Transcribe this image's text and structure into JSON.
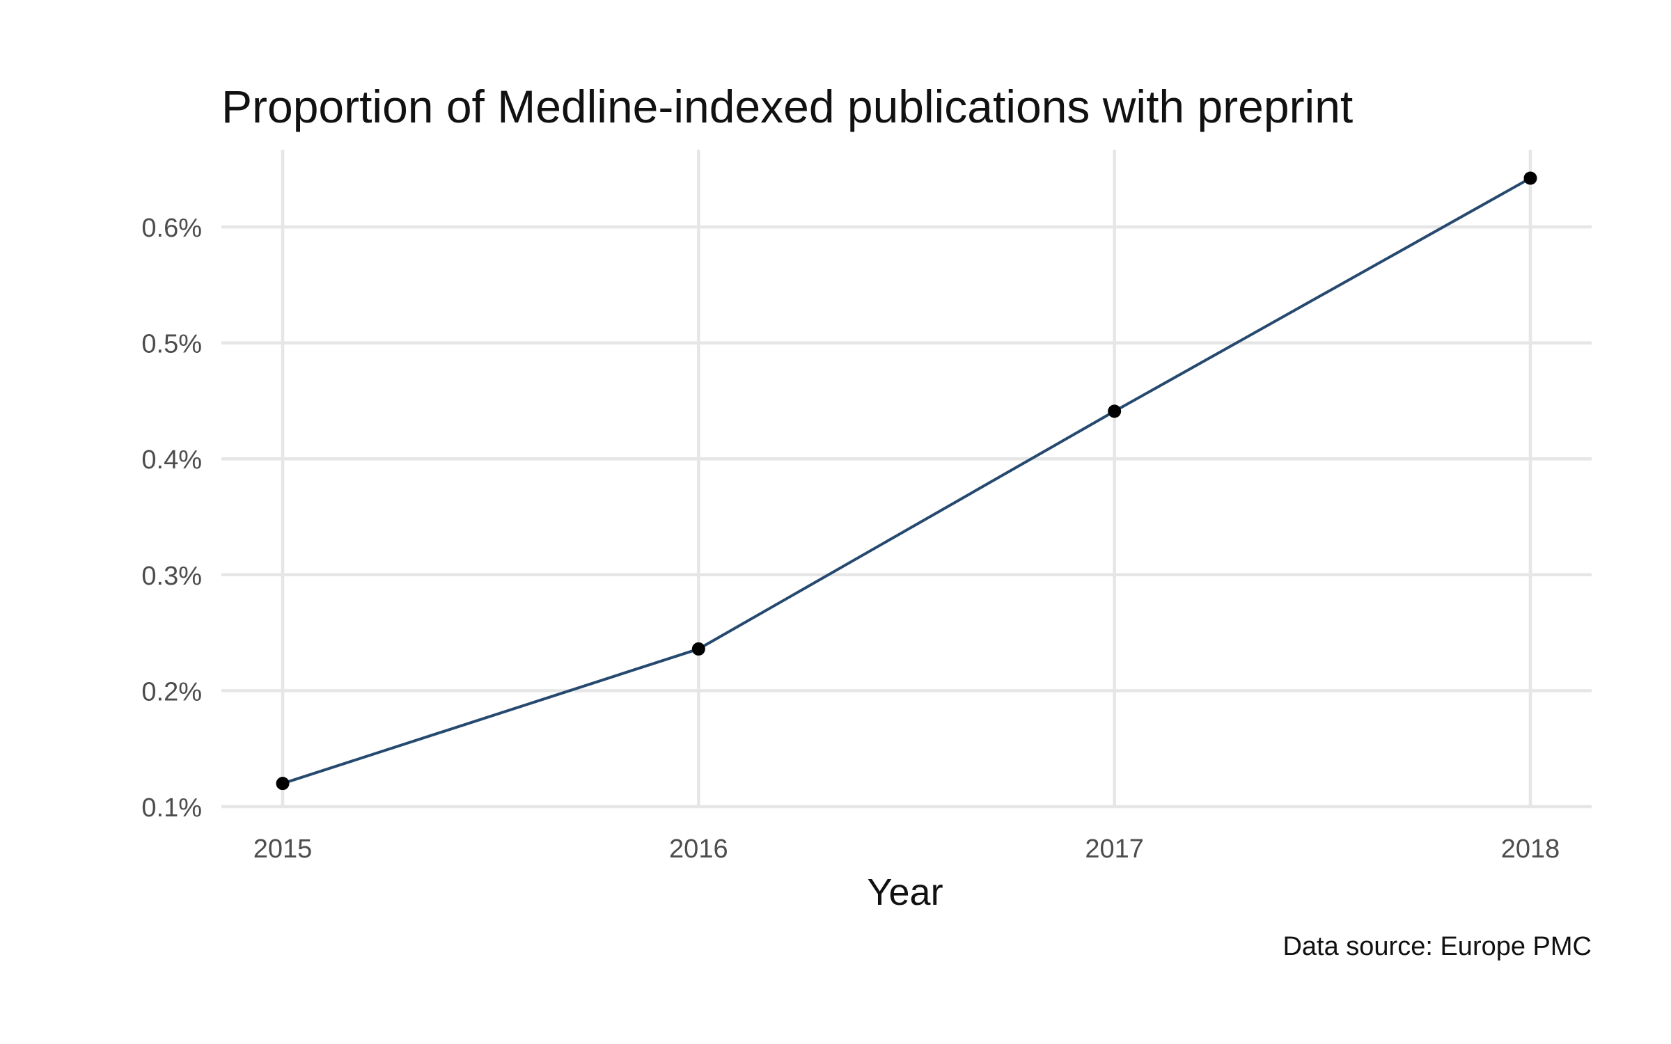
{
  "chart_data": {
    "type": "line",
    "title": "Proportion of Medline-indexed publications with preprint",
    "xlabel": "Year",
    "ylabel": "",
    "caption": "Data source: Europe PMC",
    "x": [
      2015,
      2016,
      2017,
      2018
    ],
    "x_tick_labels": [
      "2015",
      "2016",
      "2017",
      "2018"
    ],
    "y_tick_values": [
      0.1,
      0.2,
      0.3,
      0.4,
      0.5,
      0.6
    ],
    "y_tick_labels": [
      "0.1%",
      "0.2%",
      "0.3%",
      "0.4%",
      "0.5%",
      "0.6%"
    ],
    "ylim": [
      0.1,
      0.66
    ],
    "series": [
      {
        "values": [
          0.12,
          0.236,
          0.441,
          0.642
        ],
        "color": "#26496f",
        "point_color": "#000000"
      }
    ],
    "grid": true,
    "legend": "none"
  }
}
